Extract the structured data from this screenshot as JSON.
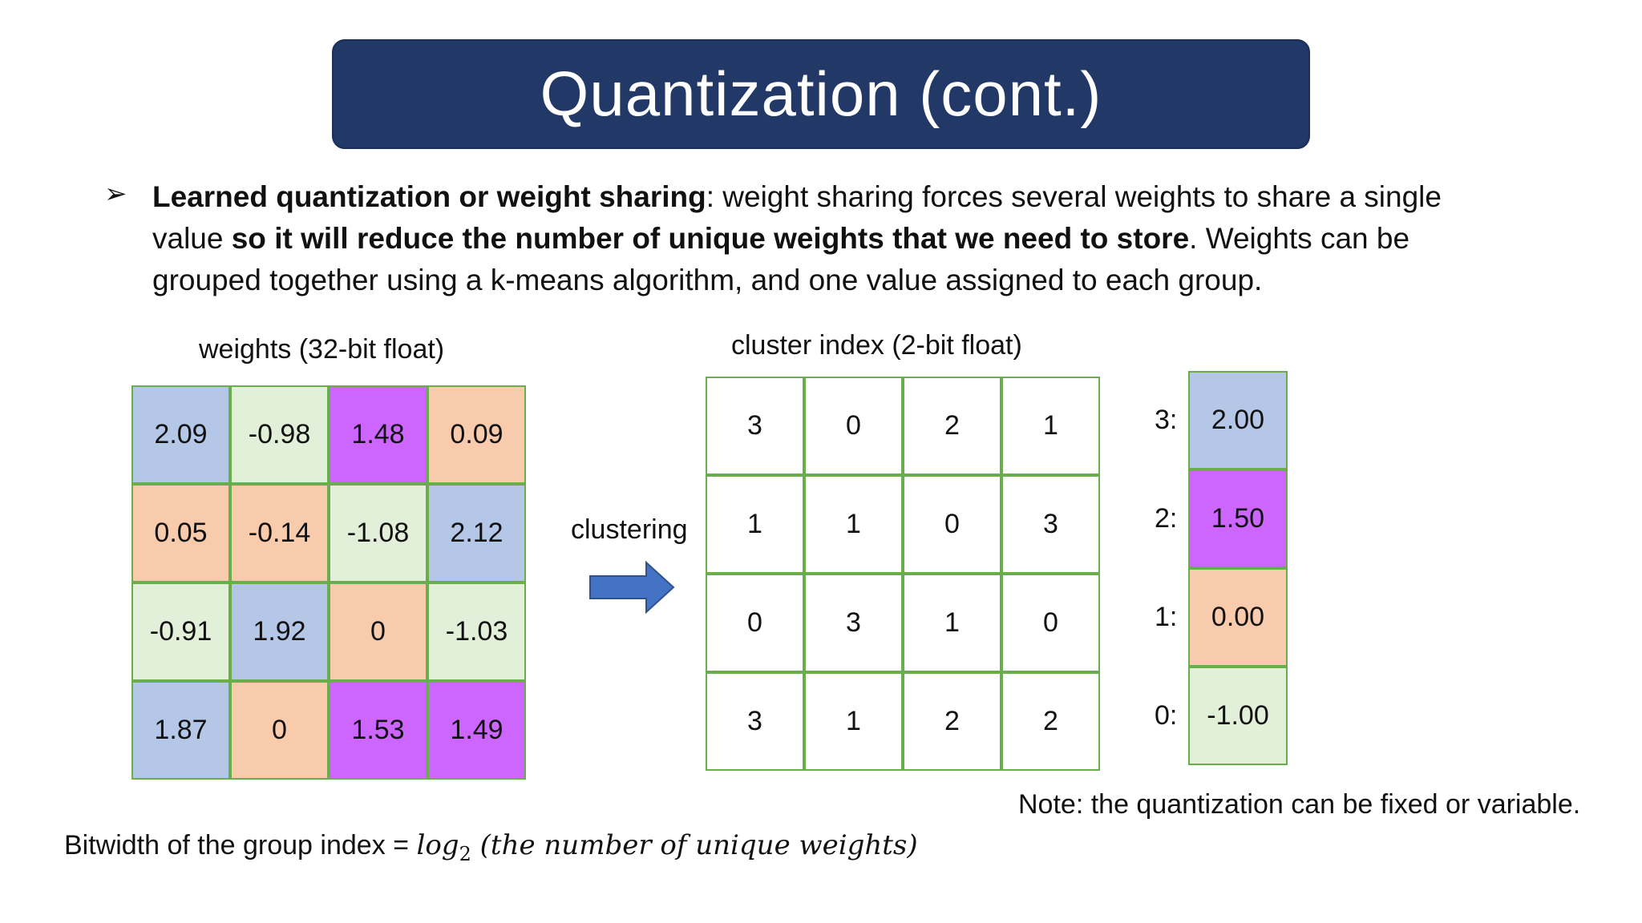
{
  "title": "Quantization (cont.)",
  "bullet": {
    "glyph": "➢",
    "bold1": "Learned quantization or weight sharing",
    "text1": ": weight sharing forces several weights to share a single value ",
    "bold2": "so it will reduce the number of unique weights that we need to store",
    "text2": ". Weights can be grouped together using a k-means algorithm, and  one value assigned to each group."
  },
  "weights_label": "weights (32-bit float)",
  "index_label": "cluster index (2-bit float)",
  "clustering_label": "clustering",
  "colors": {
    "c3": "#b4c7e7",
    "c2": "#cc66ff",
    "c1": "#f8cbad",
    "c0": "#e2f0d9",
    "arrow": "#4472c4",
    "title_bg": "#223866"
  },
  "weights": [
    [
      {
        "v": "2.09",
        "c": "c3"
      },
      {
        "v": "-0.98",
        "c": "c0"
      },
      {
        "v": "1.48",
        "c": "c2"
      },
      {
        "v": "0.09",
        "c": "c1"
      }
    ],
    [
      {
        "v": "0.05",
        "c": "c1"
      },
      {
        "v": "-0.14",
        "c": "c1"
      },
      {
        "v": "-1.08",
        "c": "c0"
      },
      {
        "v": "2.12",
        "c": "c3"
      }
    ],
    [
      {
        "v": "-0.91",
        "c": "c0"
      },
      {
        "v": "1.92",
        "c": "c3"
      },
      {
        "v": "0",
        "c": "c1"
      },
      {
        "v": "-1.03",
        "c": "c0"
      }
    ],
    [
      {
        "v": "1.87",
        "c": "c3"
      },
      {
        "v": "0",
        "c": "c1"
      },
      {
        "v": "1.53",
        "c": "c2"
      },
      {
        "v": "1.49",
        "c": "c2"
      }
    ]
  ],
  "cluster_index": [
    [
      "3",
      "0",
      "2",
      "1"
    ],
    [
      "1",
      "1",
      "0",
      "3"
    ],
    [
      "0",
      "3",
      "1",
      "0"
    ],
    [
      "3",
      "1",
      "2",
      "2"
    ]
  ],
  "centroids": [
    {
      "label": "3:",
      "value": "2.00",
      "c": "c3"
    },
    {
      "label": "2:",
      "value": "1.50",
      "c": "c2"
    },
    {
      "label": "1:",
      "value": "0.00",
      "c": "c1"
    },
    {
      "label": "0:",
      "value": "-1.00",
      "c": "c0"
    }
  ],
  "note": "Note: the quantization can be fixed or variable.",
  "formula": {
    "prefix": "Bitwidth of the group index = ",
    "func": "log",
    "base": "2",
    "arg": " (the number of unique weights)"
  }
}
